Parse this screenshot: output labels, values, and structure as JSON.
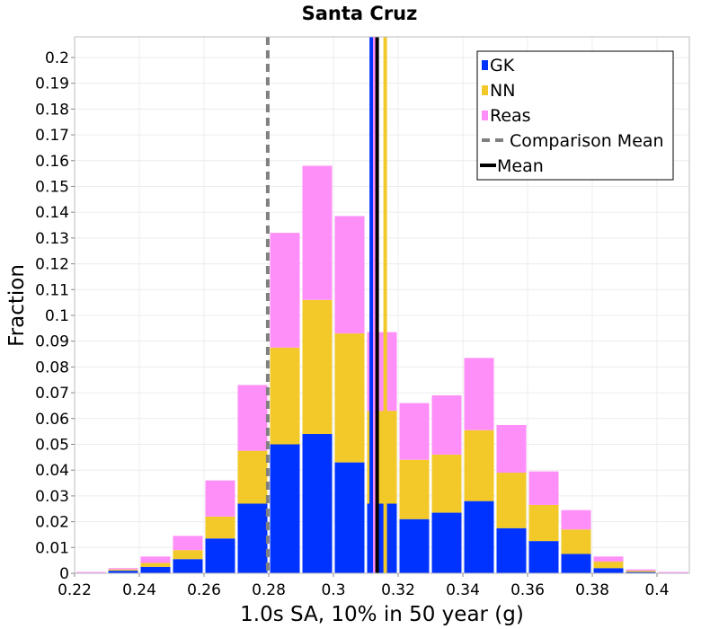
{
  "chart_data": {
    "type": "bar",
    "stacked": true,
    "title": "Santa Cruz",
    "xlabel": "1.0s SA, 10% in 50 year (g)",
    "ylabel": "Fraction",
    "xlim": [
      0.22,
      0.41
    ],
    "ylim": [
      0,
      0.208
    ],
    "x_ticks": [
      "0.22",
      "0.24",
      "0.26",
      "0.28",
      "0.3",
      "0.32",
      "0.34",
      "0.36",
      "0.38",
      "0.4"
    ],
    "y_ticks": [
      "0",
      "0.01",
      "0.02",
      "0.03",
      "0.04",
      "0.05",
      "0.06",
      "0.07",
      "0.08",
      "0.09",
      "0.1",
      "0.11",
      "0.12",
      "0.13",
      "0.14",
      "0.15",
      "0.16",
      "0.17",
      "0.18",
      "0.19",
      "0.2"
    ],
    "bin_width": 0.01,
    "bin_centers": [
      0.225,
      0.235,
      0.245,
      0.255,
      0.265,
      0.275,
      0.285,
      0.295,
      0.305,
      0.315,
      0.325,
      0.335,
      0.345,
      0.355,
      0.365,
      0.375,
      0.385,
      0.395,
      0.405
    ],
    "series": [
      {
        "name": "GK",
        "color": "#0033ff",
        "values": [
          0.0,
          0.001,
          0.0025,
          0.0055,
          0.0135,
          0.027,
          0.05,
          0.054,
          0.043,
          0.027,
          0.021,
          0.0235,
          0.028,
          0.0175,
          0.0125,
          0.0075,
          0.002,
          0.0005,
          0.0
        ]
      },
      {
        "name": "NN",
        "color": "#f2c928",
        "values": [
          0.0,
          0.0005,
          0.0015,
          0.0035,
          0.0085,
          0.0205,
          0.0375,
          0.052,
          0.05,
          0.036,
          0.023,
          0.0225,
          0.0275,
          0.0215,
          0.014,
          0.0095,
          0.0025,
          0.0005,
          0.0
        ]
      },
      {
        "name": "Reas",
        "color": "#ff8ff8",
        "values": [
          0.0005,
          0.0005,
          0.0025,
          0.0055,
          0.014,
          0.0255,
          0.0445,
          0.052,
          0.0455,
          0.0305,
          0.022,
          0.023,
          0.028,
          0.0185,
          0.013,
          0.0075,
          0.002,
          0.0005,
          0.0005
        ]
      }
    ],
    "vertical_lines": [
      {
        "name": "Comparison Mean",
        "x": 0.2797,
        "color": "#808080",
        "style": "dashed"
      },
      {
        "name": "GK mean",
        "x": 0.3117,
        "color": "#0033ff",
        "style": "solid"
      },
      {
        "name": "Reas mean",
        "x": 0.3128,
        "color": "#ff8ff8",
        "style": "solid"
      },
      {
        "name": "NN mean",
        "x": 0.316,
        "color": "#f2c928",
        "style": "solid"
      },
      {
        "name": "Mean",
        "x": 0.3135,
        "color": "#000000",
        "style": "solid"
      }
    ],
    "legend": {
      "position": "top-right",
      "entries": [
        {
          "label": "GK",
          "kind": "box",
          "color": "#0033ff"
        },
        {
          "label": "NN",
          "kind": "box",
          "color": "#f2c928"
        },
        {
          "label": "Reas",
          "kind": "box",
          "color": "#ff8ff8"
        },
        {
          "label": "Comparison Mean",
          "kind": "dashed",
          "color": "#808080"
        },
        {
          "label": "Mean",
          "kind": "line",
          "color": "#000000"
        }
      ]
    },
    "grid": true
  }
}
